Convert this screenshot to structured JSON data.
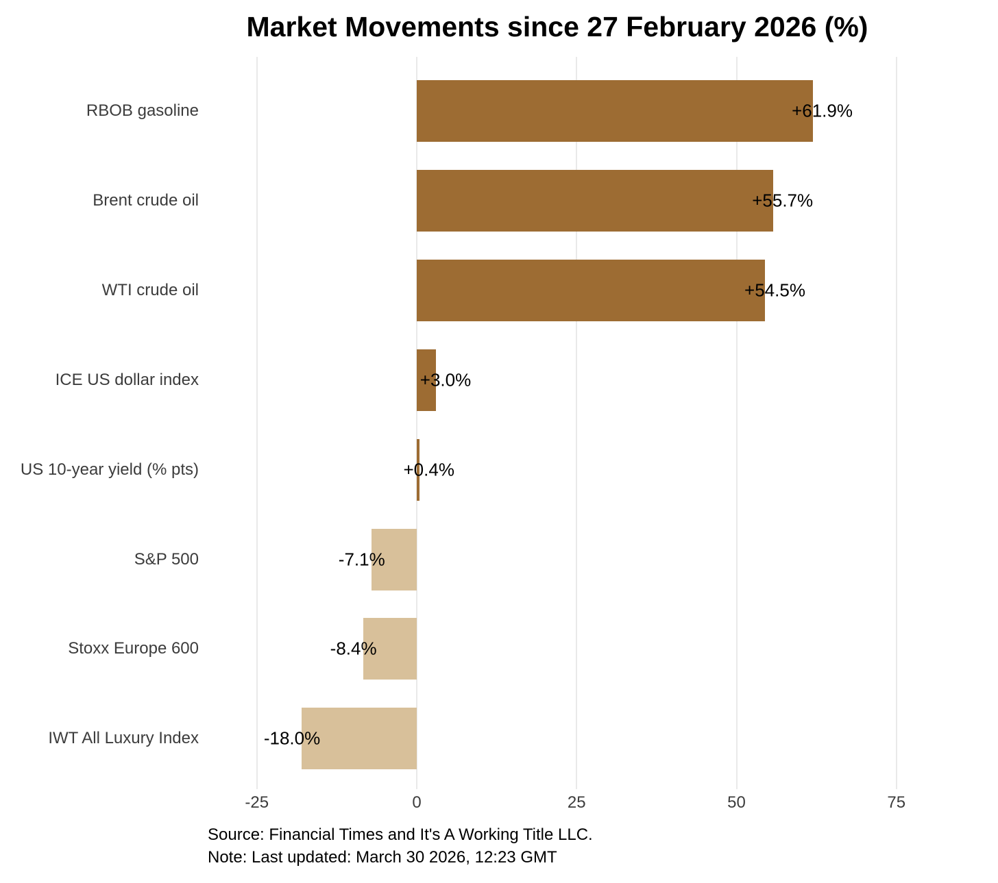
{
  "title": "Market Movements since 27 February 2026 (%)",
  "caption": {
    "source_line": "Source: Financial Times and It's A Working Title LLC.",
    "note_line": "Note: Last updated: March 30 2026, 12:23 GMT"
  },
  "colors": {
    "positive_bar": "#9D6C33",
    "negative_bar": "#D8C09A",
    "gridline": "#E9E9E9",
    "axis_text": "#3C3C3C",
    "value_text": "#000000",
    "title_text": "#000000"
  },
  "chart_data": {
    "type": "bar",
    "orientation": "horizontal",
    "title": "Market Movements since 27 February 2026 (%)",
    "categories": [
      "RBOB gasoline",
      "Brent crude oil",
      "WTI crude oil",
      "ICE US dollar index",
      "US 10-year yield (% pts)",
      "S&P 500",
      "Stoxx Europe 600",
      "IWT All Luxury Index"
    ],
    "values": [
      61.9,
      55.7,
      54.5,
      3.0,
      0.4,
      -7.1,
      -8.4,
      -18.0
    ],
    "value_labels": [
      "+61.9%",
      "+55.7%",
      "+54.5%",
      "+3.0%",
      "+0.4%",
      "-7.1%",
      "-8.4%",
      "-18.0%"
    ],
    "xlabel": "",
    "ylabel": "",
    "x_ticks": [
      -25,
      0,
      25,
      50,
      75
    ],
    "x_tick_labels": [
      "-25",
      "0",
      "25",
      "50",
      "75"
    ],
    "xlim": [
      -32,
      83
    ],
    "grid": "vertical major gridlines only",
    "legend": "none"
  }
}
